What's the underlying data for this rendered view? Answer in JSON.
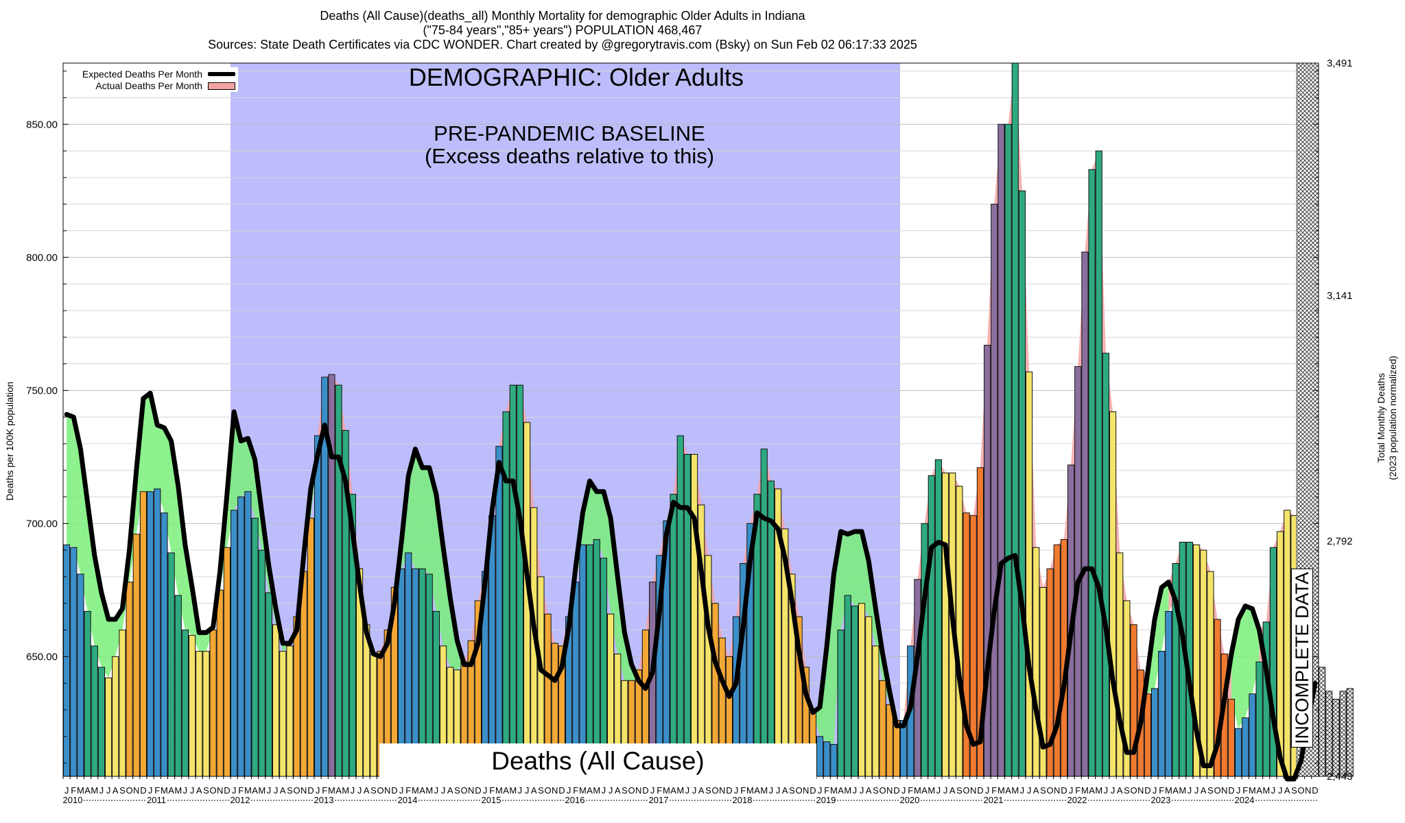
{
  "header": {
    "line1": "Deaths (All Cause)(deaths_all) Monthly Mortality for demographic Older Adults in Indiana",
    "line2": "(\"75-84 years\",\"85+ years\") POPULATION 468,467",
    "line3": "Sources: State Death Certificates via CDC WONDER.             Chart created by @gregorytravis.com (Bsky) on Sun Feb 02 06:17:33 2025"
  },
  "annotations": {
    "demographic": "DEMOGRAPHIC: Older Adults",
    "baseline_line1": "PRE-PANDEMIC BASELINE",
    "baseline_line2": "(Excess deaths relative to this)",
    "bottom_label": "Deaths (All Cause)",
    "incomplete": "INCOMPLETE DATA"
  },
  "legend": {
    "expected": "Expected Deaths Per Month",
    "actual": "Actual Deaths Per Month"
  },
  "colors": {
    "baseline_band": "#bdbdfb",
    "excess_fill": "#f4a3a3",
    "deficit_fill": "#79ef79",
    "expected_line": "#000000",
    "winter": "#3b8fc9",
    "spring": "#2faa80",
    "summer": "#f4e46a",
    "fall": "#f3a836",
    "pandemic_fall": "#f07a30",
    "incomplete_hatch": "#cccccc"
  },
  "chart_data": {
    "type": "bar",
    "title": "Deaths (All Cause)(deaths_all) Monthly Mortality for demographic Older Adults in Indiana",
    "ylabel": "Deaths per 100K population",
    "ylabel_right": [
      "Total Monthly Deaths",
      "(2023 population normalized)"
    ],
    "ylim": [
      605,
      873
    ],
    "y_ticks": [
      "650.00",
      "700.00",
      "750.00",
      "800.00",
      "850.00"
    ],
    "y_tick_values": [
      650,
      700,
      750,
      800,
      850
    ],
    "right_ticks": [
      "2,443",
      "2,792",
      "3,141",
      "3,491"
    ],
    "right_tick_values": [
      605,
      693.33,
      785.67,
      873
    ],
    "start": "2010-01",
    "years": [
      "2010",
      "2011",
      "2012",
      "2013",
      "2014",
      "2015",
      "2016",
      "2017",
      "2018",
      "2019",
      "2020",
      "2021",
      "2022",
      "2023",
      "2024"
    ],
    "month_letters": [
      "J",
      "F",
      "M",
      "A",
      "M",
      "J",
      "J",
      "A",
      "S",
      "O",
      "N",
      "D"
    ],
    "baseline_period": [
      "2012-01",
      "2019-12"
    ],
    "incomplete_from": "2024-12",
    "series": [
      {
        "name": "Actual Deaths Per Month",
        "values": [
          692,
          691,
          681,
          667,
          654,
          646,
          642,
          650,
          660,
          678,
          696,
          712,
          712,
          713,
          704,
          689,
          673,
          660,
          658,
          652,
          652,
          660,
          675,
          691,
          705,
          710,
          712,
          702,
          690,
          674,
          662,
          652,
          654,
          665,
          682,
          702,
          733,
          755,
          756,
          752,
          735,
          711,
          683,
          662,
          651,
          652,
          660,
          676,
          683,
          689,
          683,
          683,
          681,
          667,
          654,
          646,
          645,
          648,
          656,
          671,
          682,
          703,
          729,
          742,
          752,
          752,
          738,
          706,
          680,
          666,
          655,
          654,
          665,
          678,
          692,
          692,
          694,
          687,
          666,
          651,
          641,
          641,
          645,
          660,
          678,
          688,
          701,
          711,
          733,
          726,
          726,
          707,
          688,
          670,
          657,
          650,
          665,
          685,
          700,
          711,
          728,
          716,
          713,
          698,
          681,
          665,
          646,
          629,
          620,
          618,
          617,
          660,
          673,
          669,
          670,
          665,
          654,
          641,
          632,
          626,
          626,
          654,
          679,
          700,
          718,
          724,
          719,
          719,
          714,
          704,
          703,
          721,
          767,
          820,
          850,
          850,
          873,
          825,
          757,
          691,
          676,
          683,
          692,
          694,
          722,
          759,
          802,
          833,
          840,
          764,
          742,
          689,
          671,
          662,
          645,
          636,
          638,
          652,
          667,
          685,
          693,
          693,
          692,
          690,
          682,
          664,
          651,
          634,
          623,
          627,
          636,
          648,
          663,
          691,
          697,
          705,
          703,
          689,
          672,
          656,
          646,
          637,
          634,
          637,
          638
        ]
      },
      {
        "name": "Expected Deaths Per Month",
        "values": [
          741,
          740,
          728,
          708,
          688,
          674,
          664,
          664,
          668,
          690,
          720,
          747,
          749,
          737,
          736,
          731,
          714,
          692,
          676,
          659,
          659,
          661,
          682,
          711,
          742,
          731,
          732,
          724,
          704,
          684,
          668,
          655,
          655,
          660,
          688,
          713,
          726,
          737,
          725,
          725,
          716,
          697,
          677,
          659,
          651,
          650,
          655,
          670,
          693,
          718,
          728,
          721,
          721,
          711,
          691,
          672,
          656,
          647,
          647,
          655,
          678,
          705,
          723,
          716,
          716,
          702,
          681,
          661,
          645,
          643,
          641,
          646,
          661,
          684,
          704,
          716,
          712,
          712,
          702,
          680,
          659,
          647,
          641,
          638,
          644,
          667,
          696,
          708,
          706,
          706,
          702,
          682,
          661,
          648,
          641,
          635,
          640,
          661,
          686,
          704,
          702,
          701,
          698,
          687,
          671,
          652,
          636,
          629,
          631,
          654,
          681,
          697,
          696,
          697,
          697,
          686,
          668,
          651,
          637,
          624,
          624,
          631,
          650,
          672,
          691,
          693,
          692,
          665,
          642,
          624,
          617,
          618,
          645,
          667,
          685,
          687,
          688,
          669,
          646,
          630,
          616,
          617,
          624,
          639,
          659,
          678,
          683,
          683,
          676,
          661,
          641,
          626,
          614,
          614,
          625,
          644,
          664,
          676,
          678,
          671,
          658,
          640,
          622,
          609,
          609,
          617,
          634,
          651,
          664,
          669,
          668,
          660,
          645,
          627,
          612,
          604,
          604,
          611,
          626,
          640
        ]
      }
    ]
  }
}
